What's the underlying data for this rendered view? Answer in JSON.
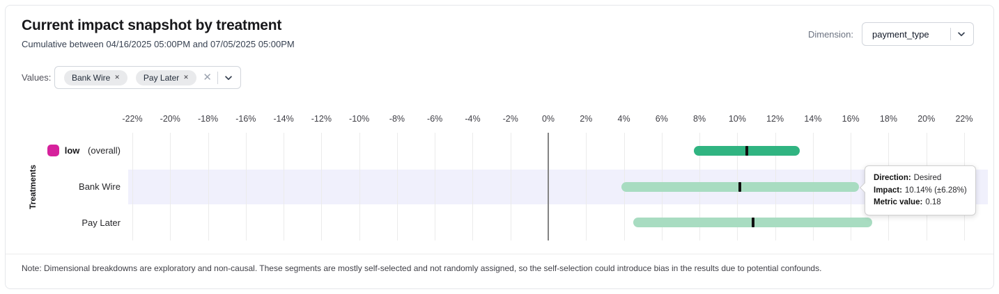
{
  "header": {
    "title": "Current impact snapshot by treatment",
    "subtitle": "Cumulative between 04/16/2025 05:00PM and 07/05/2025 05:00PM",
    "dimension_label": "Dimension:",
    "dimension_value": "payment_type"
  },
  "filters": {
    "values_label": "Values:",
    "chips": [
      "Bank Wire",
      "Pay Later"
    ]
  },
  "tooltip": {
    "direction_label": "Direction:",
    "direction_value": "Desired",
    "impact_label": "Impact:",
    "impact_value": "10.14% (±6.28%)",
    "metric_label": "Metric value:",
    "metric_value": "0.18"
  },
  "note": "Note: Dimensional breakdowns are exploratory and non-causal. These segments are mostly self-selected and not randomly assigned, so the self-selection could introduce bias in the results due to potential confounds.",
  "colors": {
    "accent_green": "#30b481",
    "light_green": "#a8dcc1",
    "legend_magenta": "#d6219c",
    "highlight_band": "#f0f0fc",
    "marker_black": "#111111"
  },
  "chart_data": {
    "type": "bar",
    "subtype": "horizontal-interval (impact estimate with confidence interval)",
    "title": "Current impact snapshot by treatment",
    "ylabel": "Treatments",
    "xlabel": "",
    "xlim": [
      -23,
      23
    ],
    "grid": "vertical",
    "legend_position": "none",
    "axis": {
      "unit": "%",
      "tick_values": [
        -22,
        -20,
        -18,
        -16,
        -14,
        -12,
        -10,
        -8,
        -6,
        -4,
        -2,
        0,
        2,
        4,
        6,
        8,
        10,
        12,
        14,
        16,
        18,
        20,
        22
      ],
      "tick_labels": [
        "-22%",
        "-20%",
        "-18%",
        "-16%",
        "-14%",
        "-12%",
        "-10%",
        "-8%",
        "-6%",
        "-4%",
        "-2%",
        "0%",
        "2%",
        "4%",
        "6%",
        "8%",
        "10%",
        "12%",
        "14%",
        "16%",
        "18%",
        "20%",
        "22%"
      ]
    },
    "rows": [
      {
        "label_bold": "low",
        "label_rest": " (overall)",
        "legend_color": "#d6219c",
        "impact_pct": 10.5,
        "ci_pct": 2.81,
        "low_pct": 7.69,
        "high_pct": 13.31,
        "bar_color": "#30b481",
        "highlighted": false
      },
      {
        "label_rest": "Bank Wire",
        "impact_pct": 10.14,
        "ci_pct": 6.28,
        "low_pct": 3.86,
        "high_pct": 16.42,
        "bar_color": "#a8dcc1",
        "highlighted": true,
        "direction": "Desired",
        "metric_value": 0.18
      },
      {
        "label_rest": "Pay Later",
        "impact_pct": 10.83,
        "ci_pct": 6.32,
        "low_pct": 4.51,
        "high_pct": 17.15,
        "bar_color": "#a8dcc1",
        "highlighted": false
      }
    ]
  }
}
